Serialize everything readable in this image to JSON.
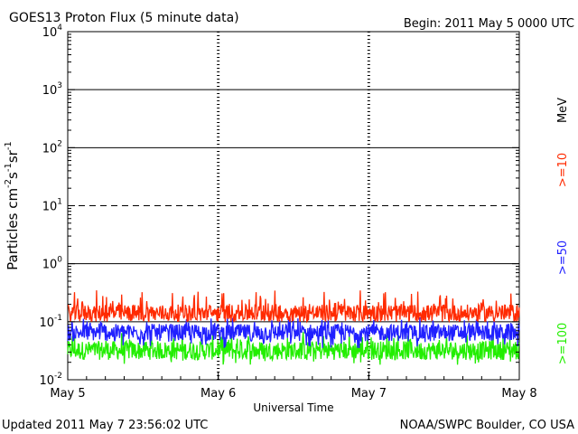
{
  "header": {
    "title": "GOES13 Proton Flux (5 minute data)",
    "begin": "Begin: 2011 May 5 0000 UTC"
  },
  "footer": {
    "updated": "Updated 2011 May  7 23:56:02 UTC",
    "credit": "NOAA/SWPC Boulder, CO USA"
  },
  "legend": {
    "unit": "MeV",
    "entries": [
      {
        "label": ">=10",
        "color": "#ff2a00"
      },
      {
        "label": ">=50",
        "color": "#2020ff"
      },
      {
        "label": ">=100",
        "color": "#22ee00"
      }
    ]
  },
  "chart_data": {
    "type": "line",
    "title": "GOES13 Proton Flux (5 minute data)",
    "xlabel": "Universal Time",
    "ylabel": "Particles cm-2s-1sr-1",
    "yscale": "log",
    "ylim": [
      0.01,
      10000
    ],
    "xlim": [
      0,
      3
    ],
    "x_ticks": [
      {
        "value": 0,
        "label": "May 5"
      },
      {
        "value": 1,
        "label": "May 6"
      },
      {
        "value": 2,
        "label": "May 7"
      },
      {
        "value": 3,
        "label": "May 8"
      }
    ],
    "y_ticks": [
      {
        "exp": -2,
        "label": "10-2"
      },
      {
        "exp": -1,
        "label": "10-1"
      },
      {
        "exp": 0,
        "label": "100"
      },
      {
        "exp": 1,
        "label": "101"
      },
      {
        "exp": 2,
        "label": "102"
      },
      {
        "exp": 3,
        "label": "103"
      },
      {
        "exp": 4,
        "label": "104"
      }
    ],
    "threshold_lines": [
      {
        "value": 1000,
        "style": "solid"
      },
      {
        "value": 100,
        "style": "solid"
      },
      {
        "value": 10,
        "style": "dashed"
      },
      {
        "value": 1,
        "style": "solid"
      },
      {
        "value": 0.1,
        "style": "solid"
      }
    ],
    "series": [
      {
        "name": ">=10 MeV",
        "color": "#ff2a00",
        "base": 0.14,
        "min": 0.1,
        "max": 0.35
      },
      {
        "name": ">=50 MeV",
        "color": "#2020ff",
        "base": 0.065,
        "min": 0.035,
        "max": 0.12
      },
      {
        "name": ">=100 MeV",
        "color": "#22ee00",
        "base": 0.032,
        "min": 0.018,
        "max": 0.07
      }
    ]
  }
}
